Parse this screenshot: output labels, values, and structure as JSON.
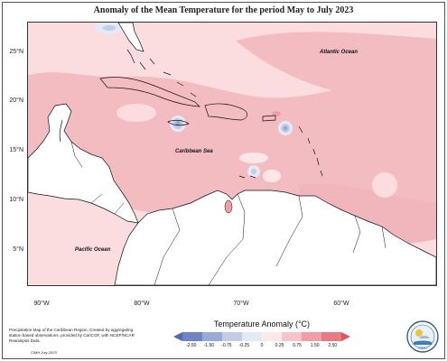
{
  "title": "Anomaly of the Mean Temperature for the period May to July 2023",
  "map": {
    "lat_labels": [
      "25°N",
      "20°N",
      "15°N",
      "10°N",
      "5°N"
    ],
    "lon_labels": [
      "90°W",
      "80°W",
      "70°W",
      "60°W"
    ],
    "ocean_labels": {
      "atlantic": "Atlantic Ocean",
      "caribbean": "Caribbean Sea",
      "pacific": "Pacific Ocean"
    }
  },
  "colorbar": {
    "title": "Temperature Anomaly (°C)",
    "ticks": [
      "-2.50",
      "-1.50",
      "-0.75",
      "-0.25",
      "0",
      "0.25",
      "0.75",
      "1.50",
      "2.50"
    ],
    "colors": [
      "#6f84c4",
      "#9aaad6",
      "#c1cde6",
      "#e4eaf5",
      "#fde8ea",
      "#f6c4ca",
      "#ef9ea6",
      "#e87a84"
    ]
  },
  "footer": {
    "description": "Precipitation Map of the Caribbean Region. Created by aggregating station based observations, provided by CariCOF, with NCEP/NCAR Reanalysis Data.",
    "credit": "CIMH July-2023"
  },
  "logo": {
    "text": "CIMH"
  }
}
